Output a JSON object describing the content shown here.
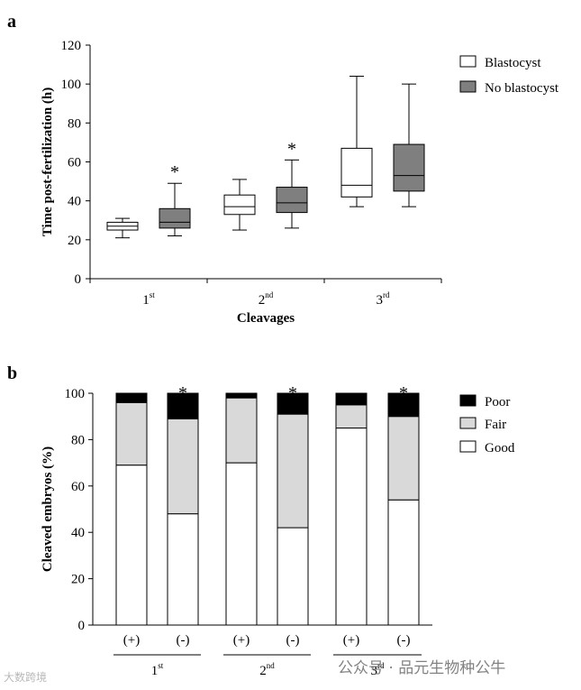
{
  "panel_a_label": "a",
  "panel_b_label": "b",
  "chart_data": [
    {
      "type": "box",
      "ylabel": "Time post-fertilization (h)",
      "xlabel": "Cleavages",
      "ylim": [
        0,
        120
      ],
      "yticks": [
        0,
        20,
        40,
        60,
        80,
        100,
        120
      ],
      "categories": [
        {
          "base": "1",
          "sup": "st"
        },
        {
          "base": "2",
          "sup": "nd"
        },
        {
          "base": "3",
          "sup": "rd"
        }
      ],
      "legend": [
        "Blastocyst",
        "No blastocyst"
      ],
      "colors": {
        "blastocyst": "#ffffff",
        "no_blastocyst": "#7f7f7f"
      },
      "series": [
        {
          "name": "Blastocyst",
          "boxes": [
            {
              "min": 21,
              "q1": 25,
              "median": 27,
              "q3": 29,
              "max": 31,
              "sig": ""
            },
            {
              "min": 25,
              "q1": 33,
              "median": 37,
              "q3": 43,
              "max": 51,
              "sig": ""
            },
            {
              "min": 37,
              "q1": 42,
              "median": 48,
              "q3": 67,
              "max": 104,
              "sig": ""
            }
          ]
        },
        {
          "name": "No blastocyst",
          "boxes": [
            {
              "min": 22,
              "q1": 26,
              "median": 29,
              "q3": 36,
              "max": 49,
              "sig": "*"
            },
            {
              "min": 26,
              "q1": 34,
              "median": 39,
              "q3": 47,
              "max": 61,
              "sig": "*"
            },
            {
              "min": 37,
              "q1": 45,
              "median": 53,
              "q3": 69,
              "max": 100,
              "sig": ""
            }
          ]
        }
      ]
    },
    {
      "type": "stacked_bar",
      "ylabel": "Cleaved embryos (%)",
      "ylim": [
        0,
        100
      ],
      "yticks": [
        0,
        20,
        40,
        60,
        80,
        100
      ],
      "legend": [
        "Poor",
        "Fair",
        "Good"
      ],
      "colors": {
        "Poor": "#000000",
        "Fair": "#d9d9d9",
        "Good": "#ffffff"
      },
      "groups": [
        {
          "base": "1",
          "sup": "st"
        },
        {
          "base": "2",
          "sup": "nd"
        },
        {
          "base": "3",
          "sup": "rd"
        }
      ],
      "bars": [
        {
          "label": "(+)",
          "group": 0,
          "good": 69,
          "fair": 27,
          "poor": 4,
          "sig": ""
        },
        {
          "label": "(-)",
          "group": 0,
          "good": 48,
          "fair": 41,
          "poor": 11,
          "sig": "*"
        },
        {
          "label": "(+)",
          "group": 1,
          "good": 70,
          "fair": 28,
          "poor": 2,
          "sig": ""
        },
        {
          "label": "(-)",
          "group": 1,
          "good": 42,
          "fair": 49,
          "poor": 9,
          "sig": "*"
        },
        {
          "label": "(+)",
          "group": 2,
          "good": 85,
          "fair": 10,
          "poor": 5,
          "sig": ""
        },
        {
          "label": "(-)",
          "group": 2,
          "good": 54,
          "fair": 36,
          "poor": 10,
          "sig": "*"
        }
      ]
    }
  ],
  "watermark": "公众号 · 品元生物种公牛",
  "watermark_corner": "大数跨境"
}
